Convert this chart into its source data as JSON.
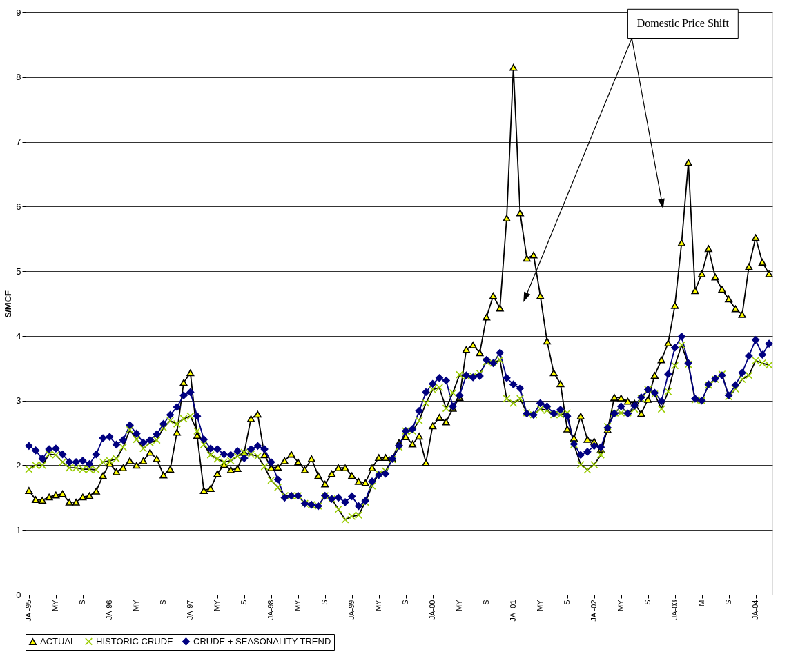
{
  "chart_data": {
    "type": "line",
    "categories": [
      "JA -95",
      null,
      null,
      null,
      "MY",
      null,
      null,
      null,
      "S",
      null,
      null,
      null,
      "JA-96",
      null,
      null,
      null,
      "MY",
      null,
      null,
      null,
      "S",
      null,
      null,
      null,
      "JA-97",
      null,
      null,
      null,
      "MY",
      null,
      null,
      null,
      "S",
      null,
      null,
      null,
      "JA-98",
      null,
      null,
      null,
      "MY",
      null,
      null,
      null,
      "S",
      null,
      null,
      null,
      "JA-99",
      null,
      null,
      null,
      "MY",
      null,
      null,
      null,
      "S",
      null,
      null,
      null,
      "JA-00",
      null,
      null,
      null,
      "MY",
      null,
      null,
      null,
      "S",
      null,
      null,
      null,
      "JA -01",
      null,
      null,
      null,
      "MY",
      null,
      null,
      null,
      "S",
      null,
      null,
      null,
      "JA -02",
      null,
      null,
      null,
      "MY",
      null,
      null,
      null,
      "S",
      null,
      null,
      null,
      "JA-03",
      null,
      null,
      null,
      "M",
      null,
      null,
      null,
      "S",
      null,
      null,
      null,
      "JA-04",
      null,
      null
    ],
    "series": [
      {
        "name": "ACTUAL",
        "color": "#ffff00",
        "marker": "triangle",
        "values": [
          1.61,
          1.47,
          1.46,
          1.51,
          1.54,
          1.56,
          1.43,
          1.43,
          1.51,
          1.53,
          1.6,
          1.84,
          2.03,
          1.9,
          1.96,
          2.07,
          2.0,
          2.07,
          2.2,
          2.1,
          1.85,
          1.94,
          2.51,
          3.28,
          3.43,
          2.46,
          1.61,
          1.64,
          1.87,
          2.01,
          1.93,
          1.95,
          2.2,
          2.72,
          2.79,
          2.16,
          1.96,
          1.97,
          2.07,
          2.17,
          2.05,
          1.93,
          2.1,
          1.84,
          1.71,
          1.87,
          1.96,
          1.96,
          1.84,
          1.75,
          1.73,
          1.96,
          2.12,
          2.12,
          2.1,
          2.35,
          2.44,
          2.33,
          2.45,
          2.04,
          2.61,
          2.74,
          2.67,
          2.88,
          3.05,
          3.79,
          3.86,
          3.74,
          4.29,
          4.62,
          4.43,
          5.82,
          8.15,
          5.9,
          5.2,
          5.25,
          4.62,
          3.92,
          3.43,
          3.26,
          2.56,
          2.42,
          2.76,
          2.4,
          2.37,
          2.25,
          2.55,
          3.05,
          3.04,
          2.99,
          2.96,
          2.8,
          3.02,
          3.39,
          3.63,
          3.89,
          4.47,
          5.44,
          6.68,
          4.7,
          4.96,
          5.35,
          4.91,
          4.72,
          4.57,
          4.42,
          4.33,
          5.07,
          5.52,
          5.14,
          4.96
        ]
      },
      {
        "name": "HISTORIC CRUDE",
        "color": "#99cc00",
        "marker": "cross",
        "values": [
          1.94,
          2.0,
          2.0,
          2.17,
          2.16,
          2.05,
          1.96,
          1.96,
          1.94,
          1.94,
          1.93,
          2.05,
          2.07,
          2.1,
          2.28,
          2.55,
          2.4,
          2.26,
          2.35,
          2.39,
          2.58,
          2.69,
          2.64,
          2.72,
          2.76,
          2.53,
          2.32,
          2.16,
          2.1,
          2.05,
          2.07,
          2.14,
          2.2,
          2.17,
          2.14,
          1.98,
          1.77,
          1.66,
          1.53,
          1.53,
          1.53,
          1.41,
          1.39,
          1.37,
          1.53,
          1.48,
          1.32,
          1.16,
          1.21,
          1.23,
          1.43,
          1.68,
          1.87,
          1.91,
          2.09,
          2.28,
          2.53,
          2.53,
          2.69,
          2.96,
          3.17,
          3.2,
          2.88,
          3.12,
          3.4,
          3.38,
          3.38,
          3.42,
          3.6,
          3.58,
          3.63,
          3.03,
          2.96,
          3.03,
          2.81,
          2.78,
          2.87,
          2.85,
          2.78,
          2.78,
          2.81,
          2.32,
          2.01,
          1.93,
          2.01,
          2.16,
          2.6,
          2.81,
          2.81,
          2.81,
          2.87,
          3.03,
          3.17,
          3.1,
          2.87,
          3.14,
          3.54,
          3.86,
          3.56,
          3.01,
          3.0,
          3.24,
          3.33,
          3.41,
          3.06,
          3.18,
          3.33,
          3.39,
          3.62,
          3.58,
          3.55
        ]
      },
      {
        "name": "CRUDE + SEASONALITY TREND",
        "color": "#000080",
        "marker": "diamond",
        "values": [
          2.3,
          2.23,
          2.1,
          2.25,
          2.26,
          2.17,
          2.05,
          2.05,
          2.07,
          2.02,
          2.17,
          2.42,
          2.44,
          2.32,
          2.39,
          2.62,
          2.49,
          2.35,
          2.39,
          2.48,
          2.64,
          2.78,
          2.9,
          3.08,
          3.13,
          2.76,
          2.4,
          2.26,
          2.25,
          2.17,
          2.16,
          2.22,
          2.11,
          2.25,
          2.3,
          2.25,
          2.05,
          1.78,
          1.5,
          1.53,
          1.53,
          1.41,
          1.39,
          1.37,
          1.53,
          1.48,
          1.5,
          1.43,
          1.52,
          1.37,
          1.45,
          1.75,
          1.85,
          1.87,
          2.1,
          2.3,
          2.53,
          2.56,
          2.84,
          3.13,
          3.26,
          3.35,
          3.31,
          2.91,
          3.08,
          3.39,
          3.36,
          3.38,
          3.63,
          3.58,
          3.74,
          3.35,
          3.25,
          3.19,
          2.8,
          2.78,
          2.96,
          2.91,
          2.8,
          2.86,
          2.76,
          2.33,
          2.16,
          2.21,
          2.3,
          2.28,
          2.58,
          2.8,
          2.91,
          2.8,
          2.92,
          3.05,
          3.17,
          3.12,
          2.99,
          3.41,
          3.82,
          3.99,
          3.58,
          3.03,
          3.0,
          3.25,
          3.34,
          3.39,
          3.08,
          3.24,
          3.43,
          3.69,
          3.94,
          3.71,
          3.88
        ]
      }
    ],
    "ylim": [
      0,
      9
    ],
    "yticks": [
      0,
      1,
      2,
      3,
      4,
      5,
      6,
      7,
      8,
      9
    ],
    "ylabel": "$/MCF",
    "grid": "y",
    "legend": "bottom",
    "annotations": [
      "Domestic Price Shift"
    ]
  }
}
